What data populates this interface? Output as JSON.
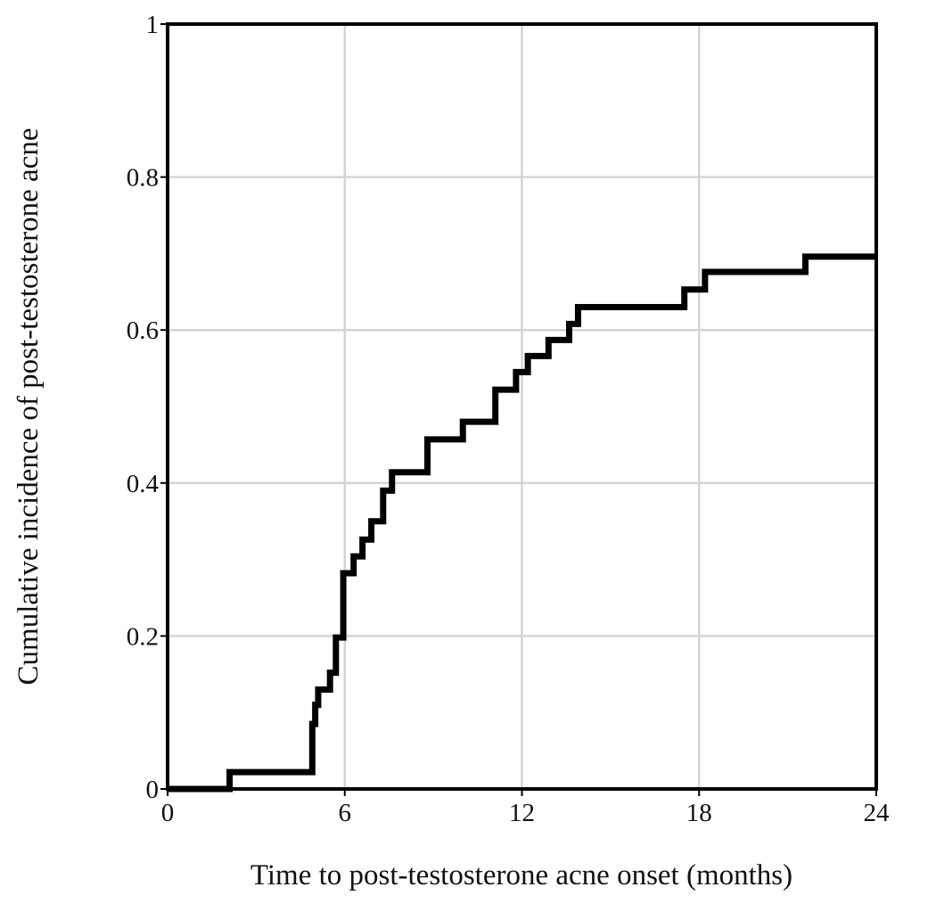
{
  "chart_data": {
    "type": "step",
    "xlabel": "Time to post-testosterone acne onset (months)",
    "ylabel": "Cumulative incidence of post-testosterone acne",
    "x": [
      0,
      2.1,
      4.9,
      5.0,
      5.1,
      5.5,
      5.7,
      5.95,
      6.3,
      6.6,
      6.9,
      7.3,
      7.6,
      8.8,
      10.0,
      11.1,
      11.8,
      12.2,
      12.9,
      13.6,
      13.9,
      17.5,
      18.2,
      21.6,
      24
    ],
    "values": [
      0,
      0.022,
      0.085,
      0.11,
      0.13,
      0.152,
      0.198,
      0.282,
      0.304,
      0.326,
      0.35,
      0.39,
      0.414,
      0.457,
      0.48,
      0.522,
      0.545,
      0.566,
      0.587,
      0.608,
      0.63,
      0.653,
      0.676,
      0.696,
      0.696
    ],
    "color": "#000000",
    "xlim": [
      0,
      24
    ],
    "xticks": [
      0,
      6,
      12,
      18,
      24
    ],
    "ylim": [
      0,
      1
    ],
    "yticks": [
      0,
      0.2,
      0.4,
      0.6,
      0.8,
      1
    ],
    "grid": true
  }
}
